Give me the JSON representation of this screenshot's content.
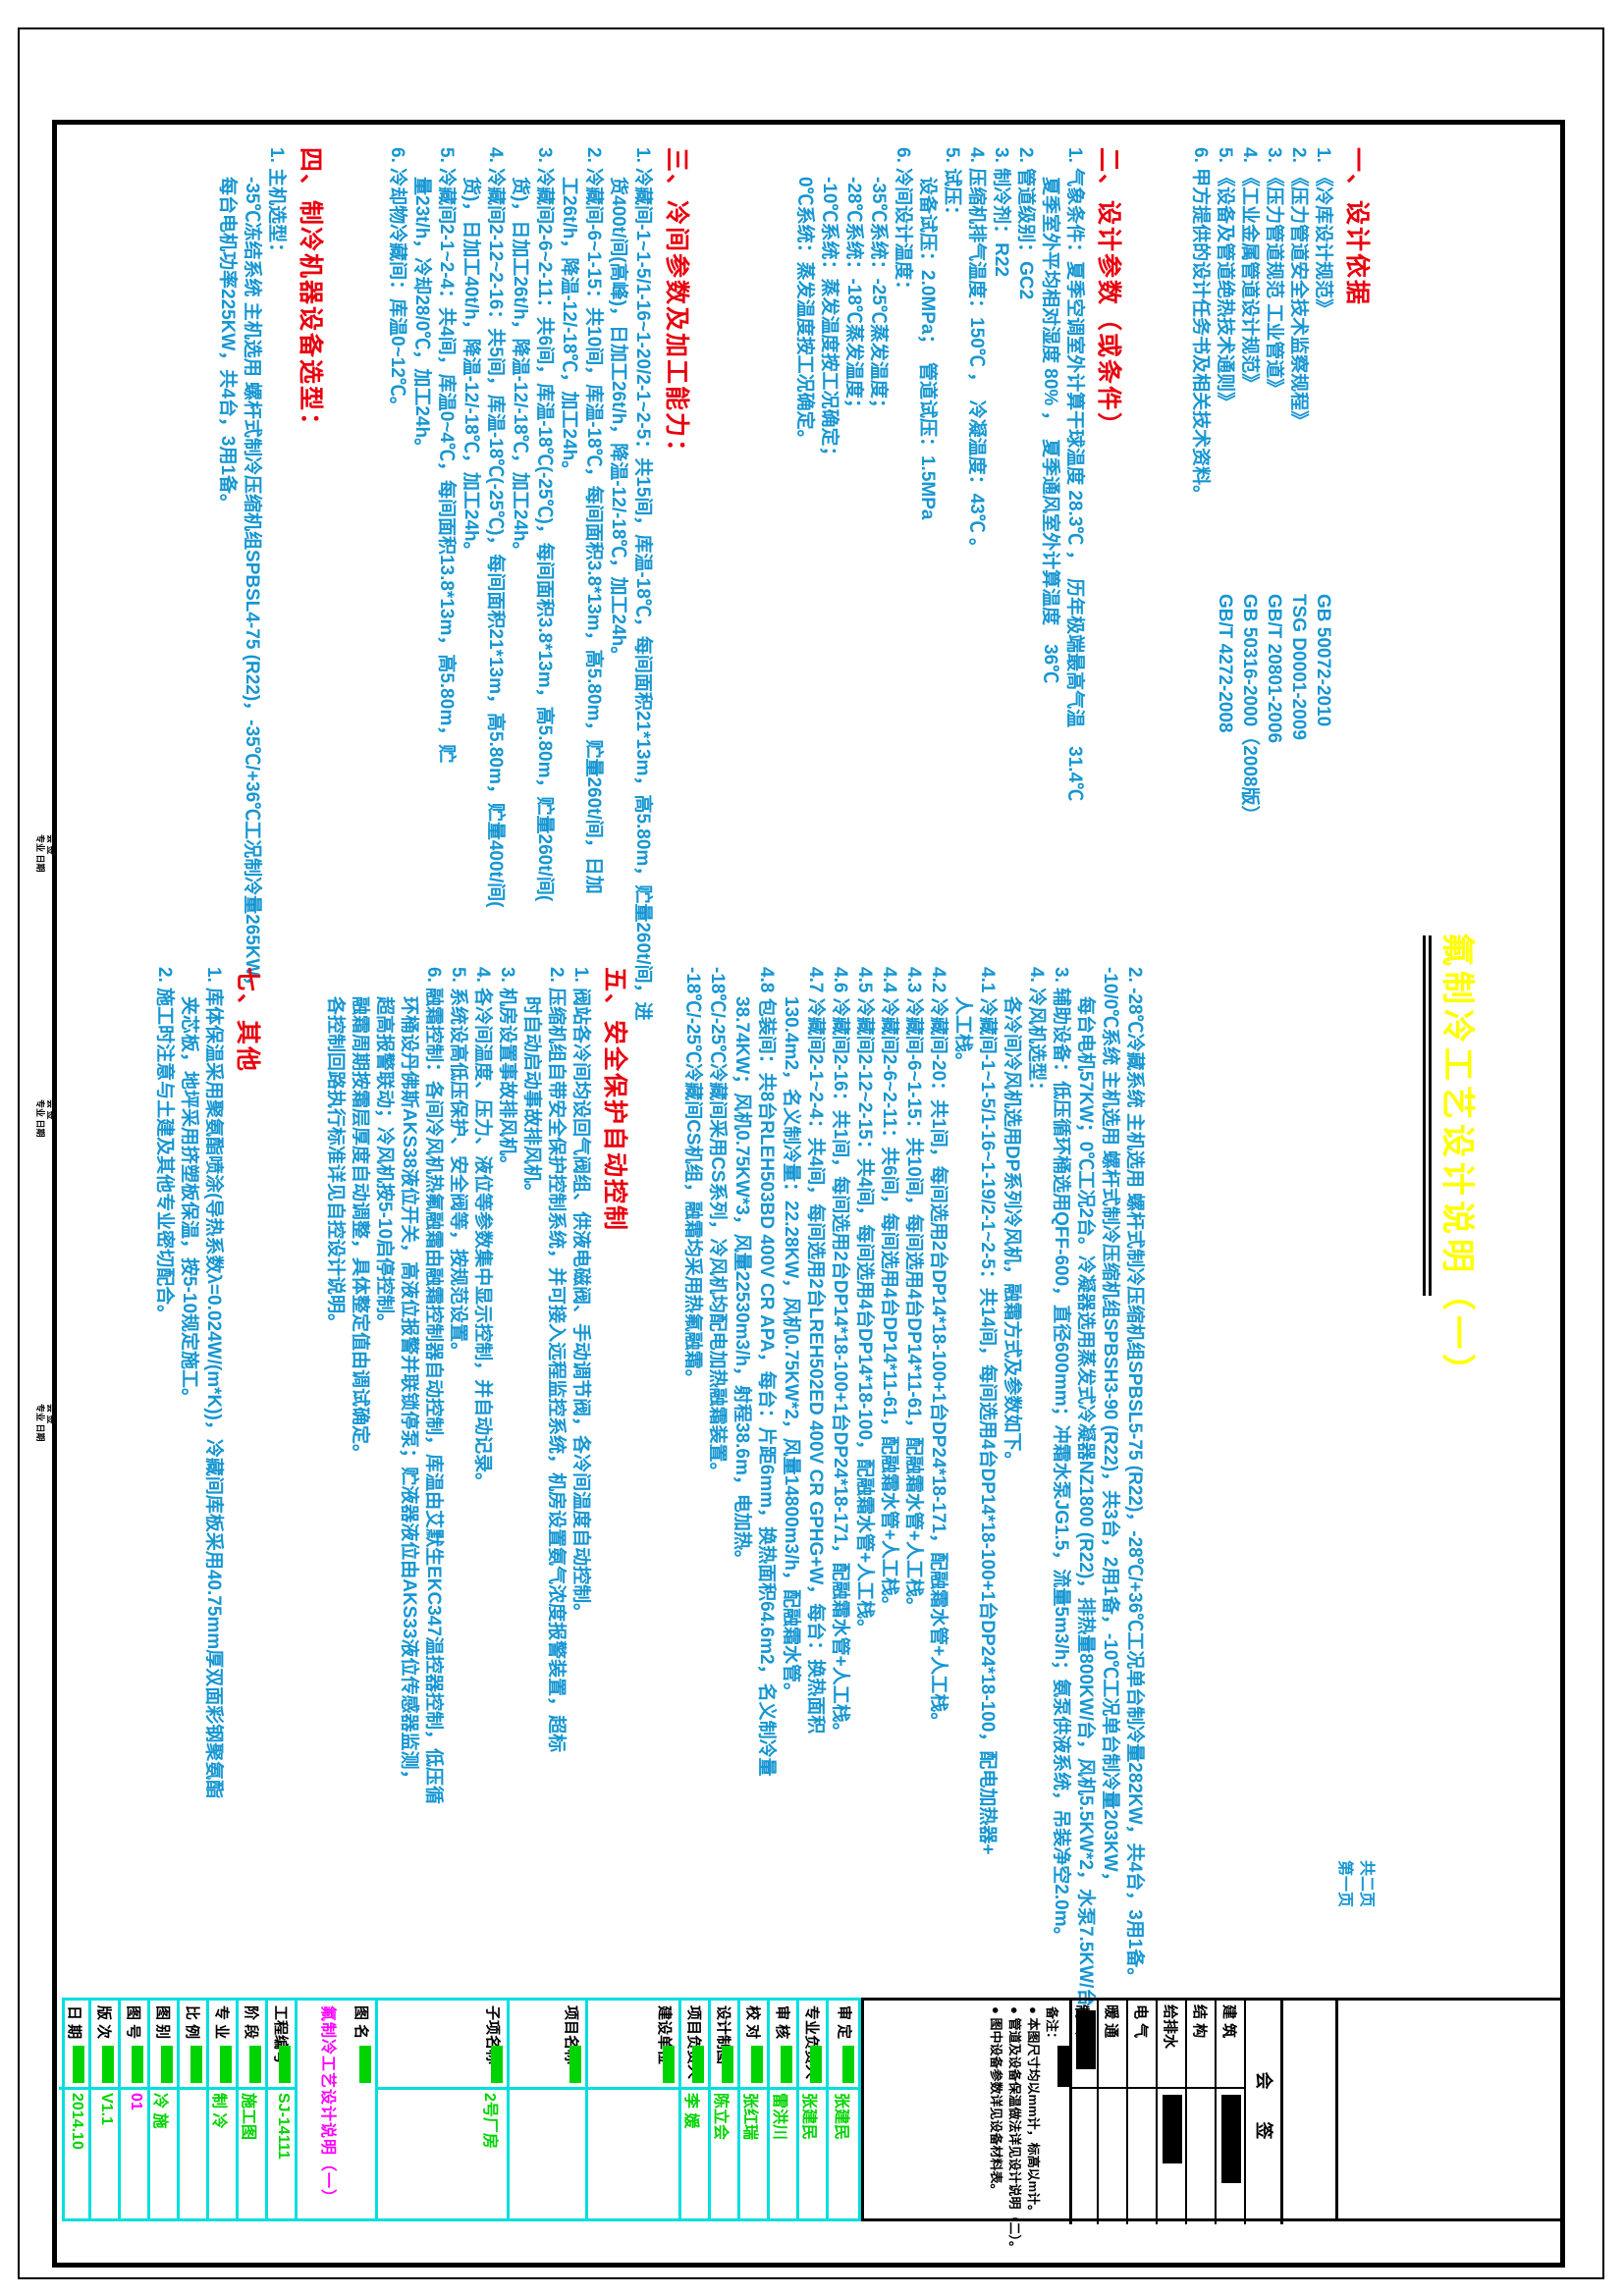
{
  "page": {
    "yellow_title": "氟制冷工艺设计说明（一）"
  },
  "corner_note": [
    "共二页",
    "第一页"
  ],
  "left_sections": [
    {
      "heading": "一、设计依据",
      "lines": [
        {
          "t": "1. 《冷库设计规范》",
          "code": "GB 50072-2010"
        },
        {
          "t": "2. 《压力管道安全技术监察规程》",
          "code": "TSG D0001-2009"
        },
        {
          "t": "3. 《压力管道规范 工业管道》",
          "code": "GB/T 20801-2006"
        },
        {
          "t": "4. 《工业金属管道设计规范》",
          "code": "GB 50316-2000（2008版）"
        },
        {
          "t": "5. 《设备及管道绝热技术通则》",
          "code": "GB/T 4272-2008"
        },
        {
          "t": "6. 甲方提供的设计任务书及相关技术资料。"
        }
      ]
    },
    {
      "heading": "二、设计参数（或条件）",
      "lines": [
        {
          "t": "1. 气象条件：夏季空调室外计算干球温度 28.3℃ ，　历年极端最高气温　31.4℃"
        },
        {
          "t": "夏季室外平均相对湿度 80% ，　夏季通风室外计算温度　36℃",
          "ind": 1
        },
        {
          "t": "2. 管道级别：GC2"
        },
        {
          "t": "3. 制冷剂：R22"
        },
        {
          "t": "4. 压缩机排气温度：150℃ ，　冷凝温度：43℃ 。"
        },
        {
          "t": "5. 试压："
        },
        {
          "t": "设备试压：2.0MPa；　管道试压：1.5MPa",
          "ind": 1
        },
        {
          "t": "6. 冷间设计温度："
        },
        {
          "t": "-35℃系统：-25℃蒸发温度；",
          "ind": 1
        },
        {
          "t": "-28℃系统：-18℃蒸发温度；",
          "ind": 1
        },
        {
          "t": "-10℃系统：蒸发温度按工况确定；",
          "ind": 1
        },
        {
          "t": "0℃系统：蒸发温度按工况确定。",
          "ind": 1
        }
      ]
    },
    {
      "heading": "三、冷间参数及加工能力：",
      "lines": [
        {
          "t": "1. 冷藏间-1~1-5/1-16~1-20/2-1~2-5：共15间，库温-18℃，每间面积21*13m，高5.80m，贮量260t/间，进"
        },
        {
          "t": "货400t/间(高峰)，日加工26t/h，降温-12/-18℃，加工24h。",
          "ind": 1
        },
        {
          "t": "2. 冷藏间-6~1-15：共10间，库温-18℃，每间面积3.8*13m，高5.80m，贮量260t/间，日加"
        },
        {
          "t": "工26t/h，降温-12/-18℃，加工24h。",
          "ind": 1
        },
        {
          "t": "3. 冷藏间2-6~2-11：共6间，库温-18℃(-25℃)，每间面积3.8*13m，高5.80m，贮量260t/间("
        },
        {
          "t": "货)，日加工26t/h，降温-12/-18℃，加工24h。",
          "ind": 1
        },
        {
          "t": "4. 冷藏间2-12~2-16：共5间，库温-18℃(-25℃)，每间面积21*13m，高5.80m，贮量400t/间("
        },
        {
          "t": "货)，日加工40t/h，降温-12/-18℃，加工24h。",
          "ind": 1
        },
        {
          "t": "5. 冷藏间2-1~2-4：共4间，库温0~4℃，每间面积13.8*13m，高5.80m，贮"
        },
        {
          "t": "量23t/h，冷却28/0℃，加工24h。",
          "ind": 1
        },
        {
          "t": "6. 冷却物冷藏间：库温0~12℃。"
        }
      ]
    },
    {
      "heading": "四、制冷机器设备选型：",
      "lines": [
        {
          "t": "1. 主机选型："
        },
        {
          "t": "-35℃冻结系统 主机选用 螺杆式制冷压缩机组SPBSL4-75 (R22)，-35℃/+36℃工况制冷量265KW，",
          "ind": 1
        },
        {
          "t": "每台电机功率225KW，共4台，3用1备。",
          "ind": 1
        }
      ]
    }
  ],
  "right_sections": [
    {
      "heading": null,
      "lines": [
        {
          "t": "2. -28℃冷藏系统 主机选用 螺杆式制冷压缩机组SPBSL5-75 (R22)，-28℃/+36℃工况单台制冷量282KW，共4台，3用1备。"
        },
        {
          "t": "-10/0℃系统 主机选用 螺杆式制冷压缩机组SPBSH3-90 (R22)，共3台，2用1备，-10℃工况单台制冷量203KW，"
        },
        {
          "t": "每台电机57KW；0℃工况2台。冷凝器选用蒸发式冷凝器NZ1800 (R22)，排热量800KW/台，风机5.5KW*2，水泵7.5KW/台。",
          "ind": 1
        },
        {
          "t": "3. 辅助设备：低压循环桶选用QFF-600，直径600mm；冲霜水泵JG1.5，流量5m3/h；氨泵供液系统，吊装净空2.0m。"
        },
        {
          "t": "4. 冷风机选型："
        },
        {
          "t": "各冷间冷风机选用DP系列冷风机，融霜方式及参数如下。",
          "ind": 1
        },
        {
          "t": "4.1 冷藏间-1~1-5/1-16~1-19/2-1~2-5：共14间，每间选用4台DP14*18-100+1台DP24*18-100，配电加热器+"
        },
        {
          "t": "人工栈。",
          "ind": 1
        },
        {
          "t": "4.2 冷藏间-20：共1间，每间选用2台DP14*18-100+1台DP24*18-171，配融霜水管+人工栈。"
        },
        {
          "t": "4.3 冷藏间-6~1-15：共10间，每间选用4台DP14*11-61，配融霜水管+人工栈。"
        },
        {
          "t": "4.4 冷藏间2-6~2-11：共6间，每间选用4台DP14*11-61，配融霜水管+人工栈。"
        },
        {
          "t": "4.5 冷藏间2-12~2-15：共4间，每间选用4台DP14*18-100，配融霜水管+人工栈。"
        },
        {
          "t": "4.6 冷藏间2-16：共1间，每间选用2台DP14*18-100+1台DP24*18-171，配融霜水管+人工栈。"
        },
        {
          "t": "4.7 冷藏间2-1~2-4：共4间，每间选用2台LREH502ED 400V CR GPHG+W，每台：换热面积"
        },
        {
          "t": "130.4m2，名义制冷量：22.28KW，风机0.75KW*2，风量14800m3/h，配融霜水管。",
          "ind": 1
        },
        {
          "t": "4.8 包装间：共8台RLEH503BD 400V CR APA，每台：片距6mm，换热面积64.6m2，名义制冷量"
        },
        {
          "t": "38.74KW；风机0.75KW*3，风量22530m3/h，射程38.6m，电加热。",
          "ind": 1
        },
        {
          "t": "-18℃/-25℃冷藏间采用CS系列，冷风机均配电加热融霜装置。"
        },
        {
          "t": "-18℃/-25℃冷藏间CS机组，融霜均采用热氟融霜。"
        }
      ]
    },
    {
      "heading": "五、安全保护自动控制",
      "lines": [
        {
          "t": "1. 阀站各冷间均设回气阀组、供液电磁阀、手动调节阀，各冷间温度自动控制。"
        },
        {
          "t": "2. 压缩机组自带安全保护控制系统，并可接入远程监控系统，机房设置氨气浓度报警装置，超标"
        },
        {
          "t": "时自动启动事故排风机。",
          "ind": 1
        },
        {
          "t": "3. 机房设置事故排风机。"
        },
        {
          "t": "4. 各冷间温度、压力、液位等参数集中显示控制，并自动记录。"
        },
        {
          "t": "5. 系统设高低压保护、安全阀等，按规范设置。"
        },
        {
          "t": "6. 融霜控制：各间冷风机热氟融霜由融霜控制器自动控制，库温由艾默生EKC347温控器控制，低压循"
        },
        {
          "t": "环桶设丹佛斯AKS38液位开关，高液位报警并联锁停泵；贮液器液位由AKS33液位传感器监测，",
          "ind": 1
        },
        {
          "t": "超高报警联动；冷风机按5-10启停控制。",
          "ind": 1
        },
        {
          "t": "融霜周期按霜层厚度自动调整，具体整定值由调试确定。",
          "ind": 1
        },
        {
          "t": "各控制回路执行标准详见自控设计说明。",
          "ind": 1
        }
      ]
    },
    {
      "heading": "七、其他",
      "lines": [
        {
          "t": "1. 库体保温采用聚氨酯喷涂(导热系数λ=0.024W/(m*K))，冷藏间库板采用40.75mm厚双面彩钢聚氨酯"
        },
        {
          "t": "夹芯板，地坪采用挤塑板保温，按5-10规定施工。",
          "ind": 1
        },
        {
          "t": "2. 施工时注意与土建及其他专业密切配合。"
        }
      ]
    }
  ],
  "titleblock": {
    "huiqian_title": "会 签",
    "huiqian_rows": [
      "建 筑",
      "结 构",
      "给排水",
      "电 气",
      "暖 通",
      "制 冷"
    ],
    "beizhu": [
      "备注：",
      "● 本图尺寸均以mm计，标高以m计。",
      "● 管道及设备保温做法详见设计说明（二）。",
      "● 图中设备参数详见设备材料表。"
    ],
    "cyan_rows": [
      {
        "label": "审 定",
        "value": "张建民"
      },
      {
        "label": "专业负责人",
        "value": "张建民"
      },
      {
        "label": "审 核",
        "value": "雷洪川"
      },
      {
        "label": "校 对",
        "value": "张红瑞"
      },
      {
        "label": "设计制图",
        "value": "陈立会"
      },
      {
        "label": "项目负责人",
        "value": "李 媛"
      },
      {
        "label": "建设单位",
        "value": ""
      },
      {
        "label": "项目名称",
        "value": ""
      },
      {
        "label": "子项名称",
        "value": "2号厂房"
      },
      {
        "label": "图 名",
        "value": "氟制冷工艺设计说明（一）",
        "wide": true
      },
      {
        "label": "工程编号",
        "value": "SJ-14111"
      },
      {
        "label": "阶 段",
        "value": "施工图"
      },
      {
        "label": "专 业",
        "value": "制 冷"
      },
      {
        "label": "比 例",
        "value": ""
      },
      {
        "label": "图 别",
        "value": "冷 施"
      },
      {
        "label": "图 号",
        "value": "01",
        "magenta": true
      },
      {
        "label": "版 次",
        "value": "V1.1"
      },
      {
        "label": "日 期",
        "value": "2014.10"
      }
    ]
  },
  "margin_stamps": [
    {
      "l1": "会 签",
      "l2": "专业 日期"
    },
    {
      "l1": "会 签",
      "l2": "专业 日期"
    },
    {
      "l1": "会 签",
      "l2": "专业 日期"
    }
  ]
}
